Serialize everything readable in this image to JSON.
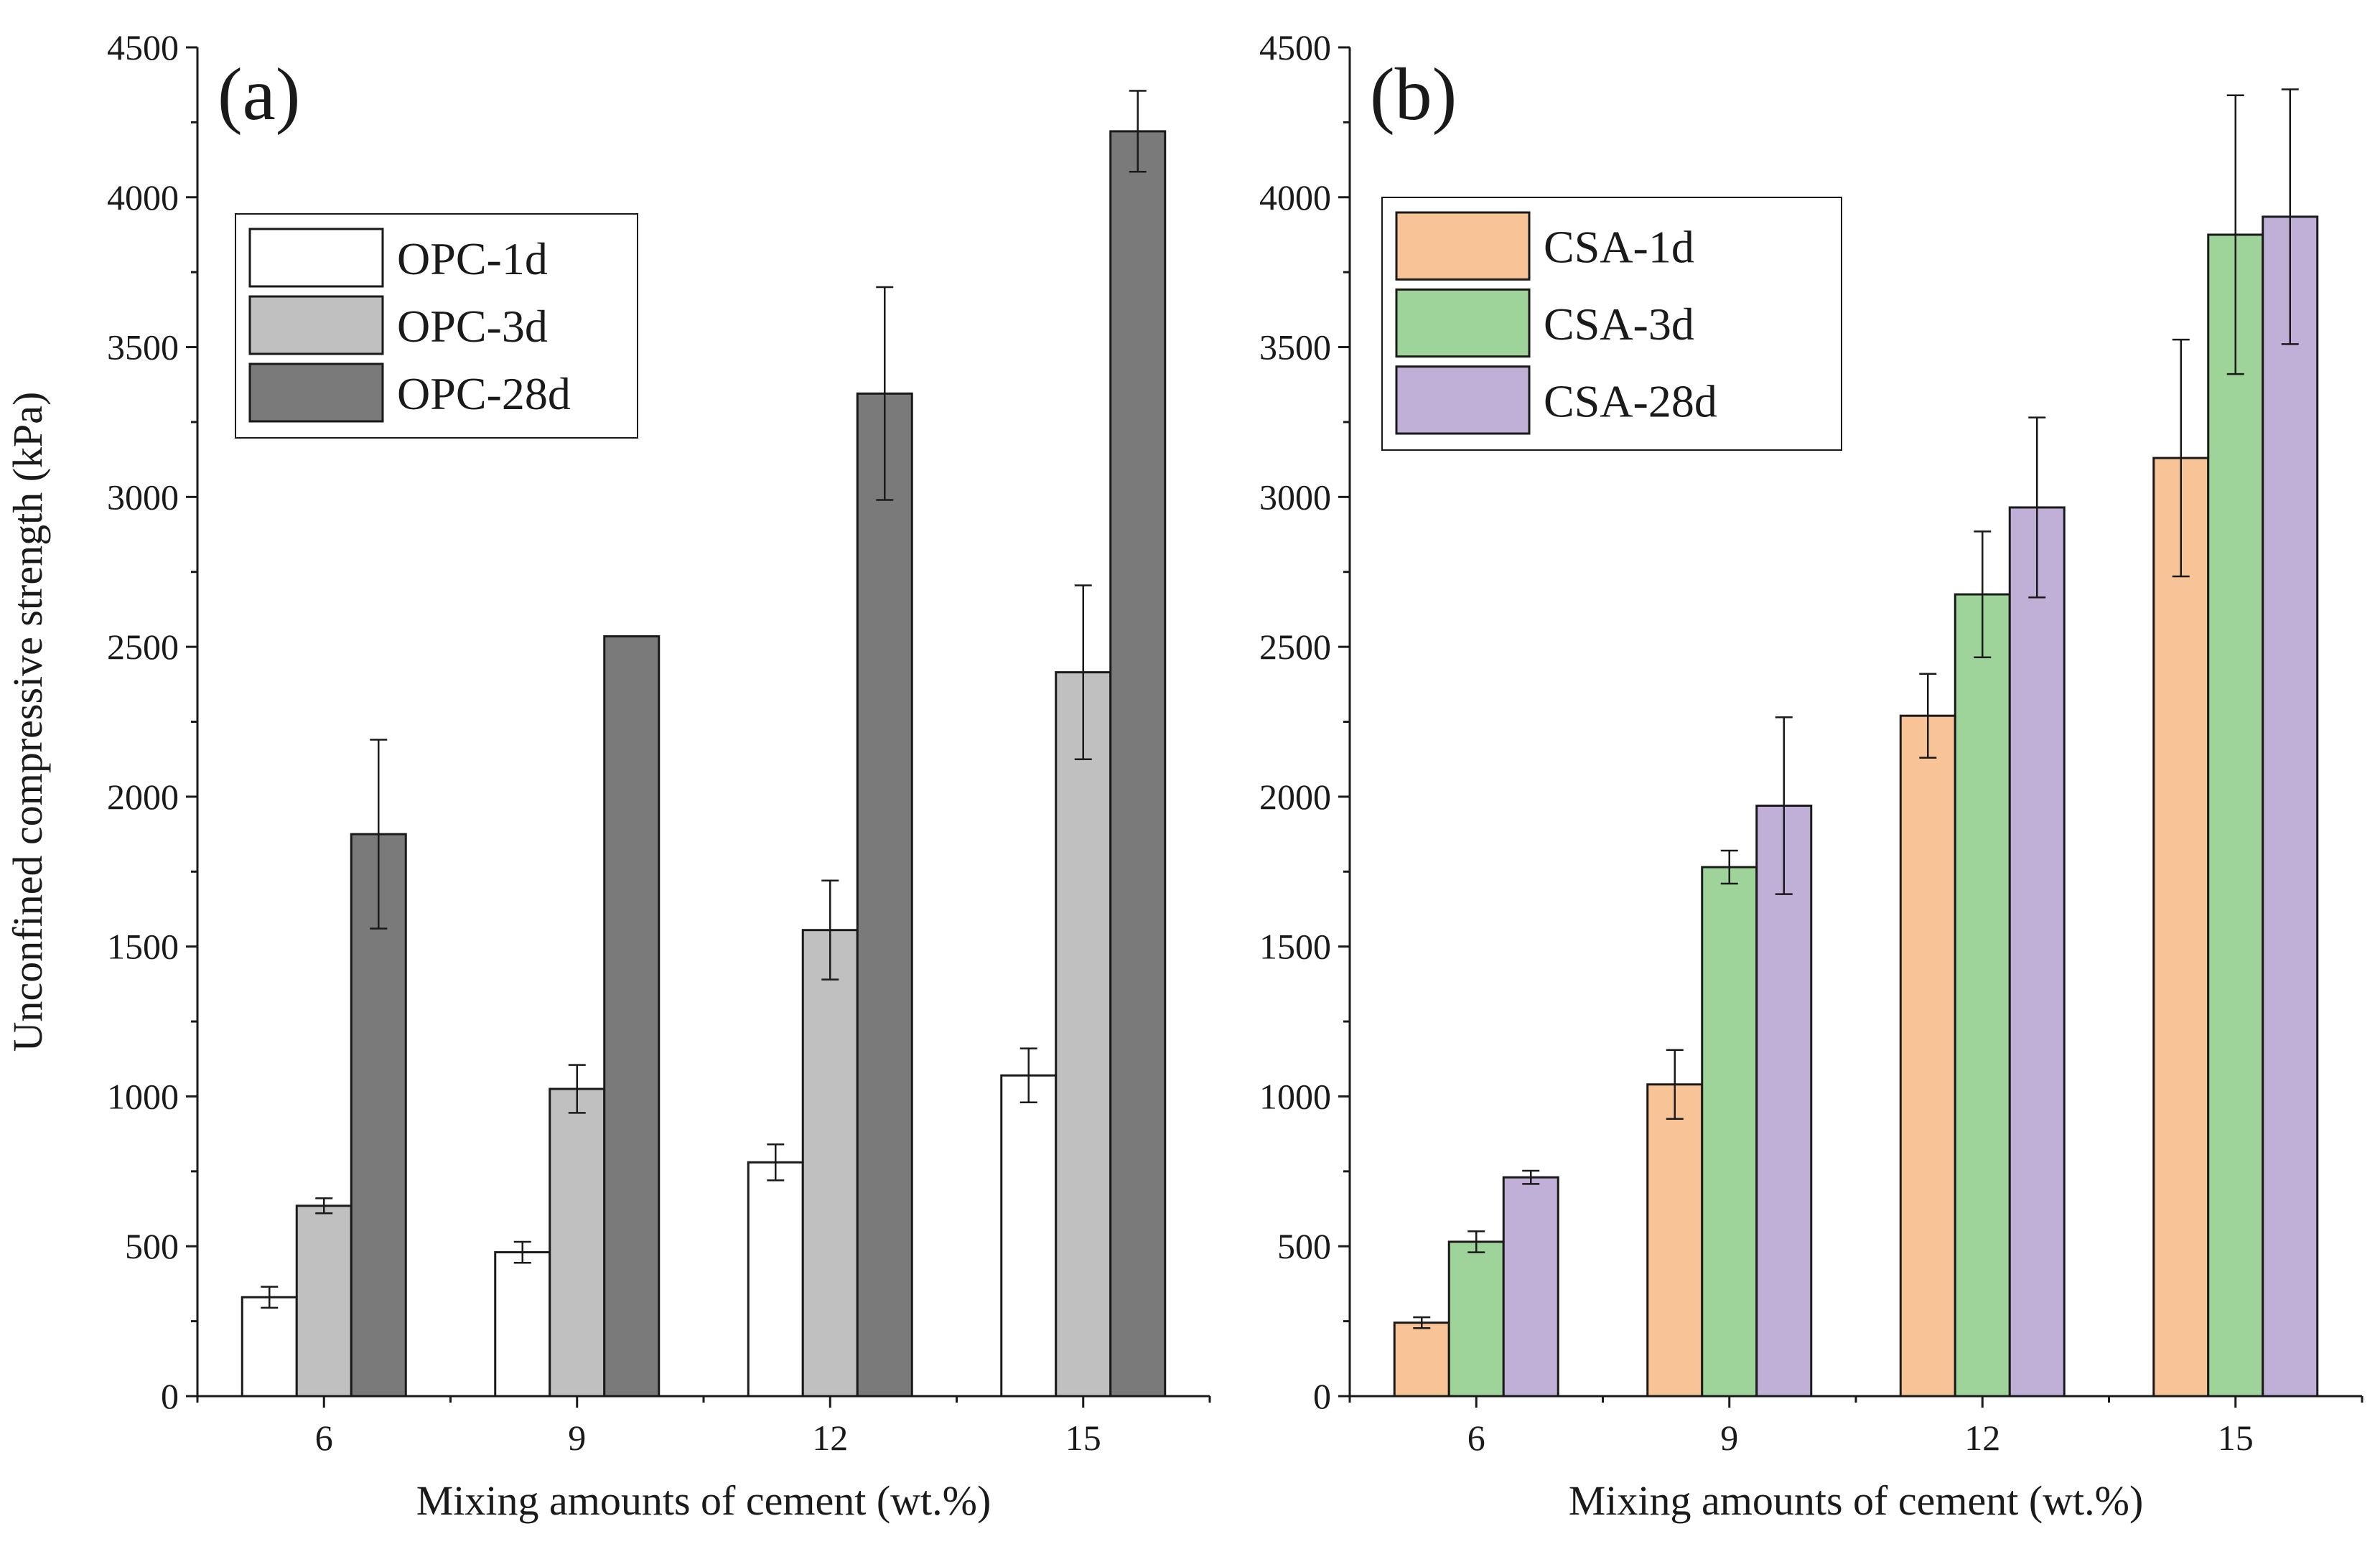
{
  "chart_data": [
    {
      "type": "bar",
      "panel_label": "(a)",
      "categories": [
        "6",
        "9",
        "12",
        "15"
      ],
      "series": [
        {
          "name": "OPC-1d",
          "color": "#ffffff",
          "values": [
            330,
            480,
            780,
            1070
          ],
          "errors": [
            35,
            35,
            60,
            90
          ]
        },
        {
          "name": "OPC-3d",
          "color": "#c0c0c0",
          "values": [
            635,
            1025,
            1555,
            2415
          ],
          "errors": [
            25,
            80,
            165,
            290
          ]
        },
        {
          "name": "OPC-28d",
          "color": "#7a7a7a",
          "values": [
            1875,
            2535,
            3345,
            4220
          ],
          "errors": [
            315,
            0,
            355,
            135
          ]
        }
      ],
      "xlabel": "Mixing amounts of cement (wt.%)",
      "ylabel": "Unconfined compressive strength (kPa)",
      "ylim": [
        0,
        4500
      ],
      "yticks": [
        "0",
        "500",
        "1000",
        "1500",
        "2000",
        "2500",
        "3000",
        "3500",
        "4000",
        "4500"
      ],
      "grid": false,
      "legend_position": "top-left"
    },
    {
      "type": "bar",
      "panel_label": "(b)",
      "categories": [
        "6",
        "9",
        "12",
        "15"
      ],
      "series": [
        {
          "name": "CSA-1d",
          "color": "#f8c497",
          "values": [
            245,
            1040,
            2270,
            3130
          ],
          "errors": [
            18,
            115,
            140,
            395
          ]
        },
        {
          "name": "CSA-3d",
          "color": "#9ed49a",
          "values": [
            515,
            1765,
            2675,
            3875
          ],
          "errors": [
            35,
            55,
            210,
            465
          ]
        },
        {
          "name": "CSA-28d",
          "color": "#c0b0d8",
          "values": [
            730,
            1970,
            2965,
            3935
          ],
          "errors": [
            22,
            295,
            300,
            425
          ]
        }
      ],
      "xlabel": "Mixing amounts of cement (wt.%)",
      "ylabel": "",
      "ylim": [
        0,
        4500
      ],
      "yticks": [
        "0",
        "500",
        "1000",
        "1500",
        "2000",
        "2500",
        "3000",
        "3500",
        "4000",
        "4500"
      ],
      "grid": false,
      "legend_position": "top-left"
    }
  ]
}
